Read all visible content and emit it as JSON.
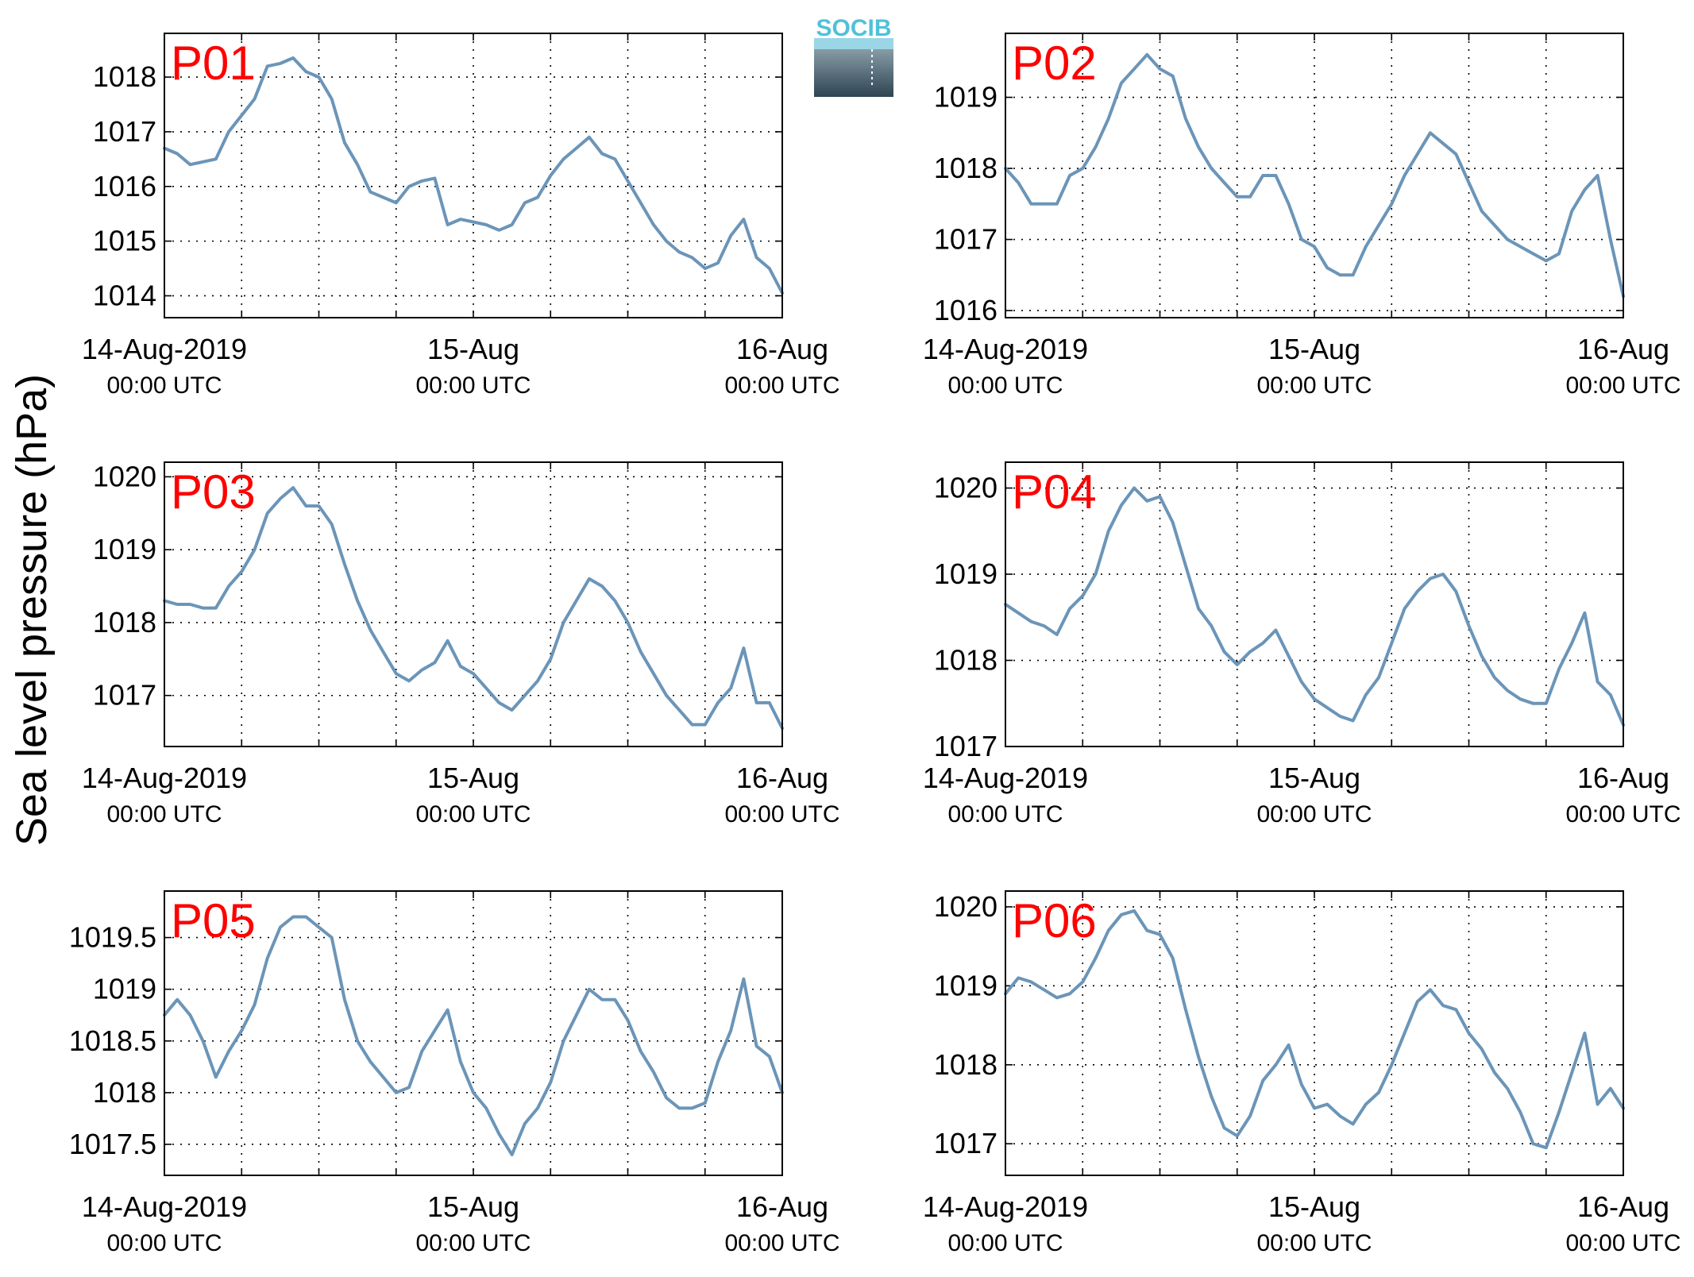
{
  "figure": {
    "ylabel": "Sea level pressure (hPa)",
    "logo_text": "SOCIB",
    "line_color": "#6b95b8",
    "title_color": "#ff0000",
    "logo_top_color": "#4fc1d9",
    "logo_dark_color": "#2e4452"
  },
  "chart_data": [
    {
      "type": "line",
      "title": "P01",
      "xlim": [
        0,
        48
      ],
      "ylim": [
        1013.6,
        1018.8
      ],
      "yticks": [
        1014,
        1015,
        1016,
        1017,
        1018
      ],
      "xtick_labels": [
        {
          "hour": 0,
          "label": "14-Aug-2019",
          "sub": "00:00 UTC"
        },
        {
          "hour": 24,
          "label": "15-Aug",
          "sub": "00:00 UTC"
        },
        {
          "hour": 48,
          "label": "16-Aug",
          "sub": "00:00 UTC"
        }
      ],
      "x": [
        0,
        1,
        2,
        3,
        4,
        5,
        6,
        7,
        8,
        9,
        10,
        11,
        12,
        13,
        14,
        15,
        16,
        17,
        18,
        19,
        20,
        21,
        22,
        23,
        24,
        25,
        26,
        27,
        28,
        29,
        30,
        31,
        32,
        33,
        34,
        35,
        36,
        37,
        38,
        39,
        40,
        41,
        42,
        43,
        44,
        45,
        46,
        47,
        48
      ],
      "y": [
        1016.7,
        1016.6,
        1016.4,
        1016.45,
        1016.5,
        1017.0,
        1017.3,
        1017.6,
        1018.2,
        1018.25,
        1018.35,
        1018.1,
        1018.0,
        1017.6,
        1016.8,
        1016.4,
        1015.9,
        1015.8,
        1015.7,
        1016.0,
        1016.1,
        1016.15,
        1015.3,
        1015.4,
        1015.35,
        1015.3,
        1015.2,
        1015.3,
        1015.7,
        1015.8,
        1016.2,
        1016.5,
        1016.7,
        1016.9,
        1016.6,
        1016.5,
        1016.1,
        1015.7,
        1015.3,
        1015.0,
        1014.8,
        1014.7,
        1014.5,
        1014.6,
        1015.1,
        1015.4,
        1014.7,
        1014.5,
        1014.05
      ]
    },
    {
      "type": "line",
      "title": "P02",
      "xlim": [
        0,
        48
      ],
      "ylim": [
        1015.9,
        1019.9
      ],
      "yticks": [
        1016,
        1017,
        1018,
        1019
      ],
      "xtick_labels": [
        {
          "hour": 0,
          "label": "14-Aug-2019",
          "sub": "00:00 UTC"
        },
        {
          "hour": 24,
          "label": "15-Aug",
          "sub": "00:00 UTC"
        },
        {
          "hour": 48,
          "label": "16-Aug",
          "sub": "00:00 UTC"
        }
      ],
      "x": [
        0,
        1,
        2,
        3,
        4,
        5,
        6,
        7,
        8,
        9,
        10,
        11,
        12,
        13,
        14,
        15,
        16,
        17,
        18,
        19,
        20,
        21,
        22,
        23,
        24,
        25,
        26,
        27,
        28,
        29,
        30,
        31,
        32,
        33,
        34,
        35,
        36,
        37,
        38,
        39,
        40,
        41,
        42,
        43,
        44,
        45,
        46,
        47,
        48
      ],
      "y": [
        1018.0,
        1017.8,
        1017.5,
        1017.5,
        1017.5,
        1017.9,
        1018.0,
        1018.3,
        1018.7,
        1019.2,
        1019.4,
        1019.6,
        1019.4,
        1019.3,
        1018.7,
        1018.3,
        1018.0,
        1017.8,
        1017.6,
        1017.6,
        1017.9,
        1017.9,
        1017.5,
        1017.0,
        1016.9,
        1016.6,
        1016.5,
        1016.5,
        1016.9,
        1017.2,
        1017.5,
        1017.9,
        1018.2,
        1018.5,
        1018.35,
        1018.2,
        1017.8,
        1017.4,
        1017.2,
        1017.0,
        1016.9,
        1016.8,
        1016.7,
        1016.8,
        1017.4,
        1017.7,
        1017.9,
        1017.0,
        1016.2
      ]
    },
    {
      "type": "line",
      "title": "P03",
      "xlim": [
        0,
        48
      ],
      "ylim": [
        1016.3,
        1020.2
      ],
      "yticks": [
        1017,
        1018,
        1019,
        1020
      ],
      "xtick_labels": [
        {
          "hour": 0,
          "label": "14-Aug-2019",
          "sub": "00:00 UTC"
        },
        {
          "hour": 24,
          "label": "15-Aug",
          "sub": "00:00 UTC"
        },
        {
          "hour": 48,
          "label": "16-Aug",
          "sub": "00:00 UTC"
        }
      ],
      "x": [
        0,
        1,
        2,
        3,
        4,
        5,
        6,
        7,
        8,
        9,
        10,
        11,
        12,
        13,
        14,
        15,
        16,
        17,
        18,
        19,
        20,
        21,
        22,
        23,
        24,
        25,
        26,
        27,
        28,
        29,
        30,
        31,
        32,
        33,
        34,
        35,
        36,
        37,
        38,
        39,
        40,
        41,
        42,
        43,
        44,
        45,
        46,
        47,
        48
      ],
      "y": [
        1018.3,
        1018.25,
        1018.25,
        1018.2,
        1018.2,
        1018.5,
        1018.7,
        1019.0,
        1019.5,
        1019.7,
        1019.85,
        1019.6,
        1019.6,
        1019.35,
        1018.8,
        1018.3,
        1017.9,
        1017.6,
        1017.3,
        1017.2,
        1017.35,
        1017.45,
        1017.75,
        1017.4,
        1017.3,
        1017.1,
        1016.9,
        1016.8,
        1017.0,
        1017.2,
        1017.5,
        1018.0,
        1018.3,
        1018.6,
        1018.5,
        1018.3,
        1018.0,
        1017.6,
        1017.3,
        1017.0,
        1016.8,
        1016.6,
        1016.6,
        1016.9,
        1017.1,
        1017.65,
        1016.9,
        1016.9,
        1016.55
      ]
    },
    {
      "type": "line",
      "title": "P04",
      "xlim": [
        0,
        48
      ],
      "ylim": [
        1017,
        1020.3
      ],
      "yticks": [
        1017,
        1018,
        1019,
        1020
      ],
      "xtick_labels": [
        {
          "hour": 0,
          "label": "14-Aug-2019",
          "sub": "00:00 UTC"
        },
        {
          "hour": 24,
          "label": "15-Aug",
          "sub": "00:00 UTC"
        },
        {
          "hour": 48,
          "label": "16-Aug",
          "sub": "00:00 UTC"
        }
      ],
      "x": [
        0,
        1,
        2,
        3,
        4,
        5,
        6,
        7,
        8,
        9,
        10,
        11,
        12,
        13,
        14,
        15,
        16,
        17,
        18,
        19,
        20,
        21,
        22,
        23,
        24,
        25,
        26,
        27,
        28,
        29,
        30,
        31,
        32,
        33,
        34,
        35,
        36,
        37,
        38,
        39,
        40,
        41,
        42,
        43,
        44,
        45,
        46,
        47,
        48
      ],
      "y": [
        1018.65,
        1018.55,
        1018.45,
        1018.4,
        1018.3,
        1018.6,
        1018.75,
        1019.0,
        1019.5,
        1019.8,
        1020.0,
        1019.85,
        1019.9,
        1019.6,
        1019.1,
        1018.6,
        1018.4,
        1018.1,
        1017.95,
        1018.1,
        1018.2,
        1018.35,
        1018.05,
        1017.75,
        1017.55,
        1017.45,
        1017.35,
        1017.3,
        1017.6,
        1017.8,
        1018.2,
        1018.6,
        1018.8,
        1018.95,
        1019.0,
        1018.8,
        1018.4,
        1018.05,
        1017.8,
        1017.65,
        1017.55,
        1017.5,
        1017.5,
        1017.9,
        1018.2,
        1018.55,
        1017.75,
        1017.6,
        1017.25
      ]
    },
    {
      "type": "line",
      "title": "P05",
      "xlim": [
        0,
        48
      ],
      "ylim": [
        1017.2,
        1019.95
      ],
      "yticks": [
        1017.5,
        1018,
        1018.5,
        1019,
        1019.5
      ],
      "xtick_labels": [
        {
          "hour": 0,
          "label": "14-Aug-2019",
          "sub": "00:00 UTC"
        },
        {
          "hour": 24,
          "label": "15-Aug",
          "sub": "00:00 UTC"
        },
        {
          "hour": 48,
          "label": "16-Aug",
          "sub": "00:00 UTC"
        }
      ],
      "x": [
        0,
        1,
        2,
        3,
        4,
        5,
        6,
        7,
        8,
        9,
        10,
        11,
        12,
        13,
        14,
        15,
        16,
        17,
        18,
        19,
        20,
        21,
        22,
        23,
        24,
        25,
        26,
        27,
        28,
        29,
        30,
        31,
        32,
        33,
        34,
        35,
        36,
        37,
        38,
        39,
        40,
        41,
        42,
        43,
        44,
        45,
        46,
        47,
        48
      ],
      "y": [
        1018.75,
        1018.9,
        1018.75,
        1018.5,
        1018.15,
        1018.4,
        1018.6,
        1018.85,
        1019.3,
        1019.6,
        1019.7,
        1019.7,
        1019.6,
        1019.5,
        1018.9,
        1018.5,
        1018.3,
        1018.15,
        1018.0,
        1018.05,
        1018.4,
        1018.6,
        1018.8,
        1018.3,
        1018.0,
        1017.85,
        1017.6,
        1017.4,
        1017.7,
        1017.85,
        1018.1,
        1018.5,
        1018.75,
        1019.0,
        1018.9,
        1018.9,
        1018.7,
        1018.4,
        1018.2,
        1017.95,
        1017.85,
        1017.85,
        1017.9,
        1018.3,
        1018.6,
        1019.1,
        1018.45,
        1018.35,
        1018.0
      ]
    },
    {
      "type": "line",
      "title": "P06",
      "xlim": [
        0,
        48
      ],
      "ylim": [
        1016.6,
        1020.2
      ],
      "yticks": [
        1017,
        1018,
        1019,
        1020
      ],
      "xtick_labels": [
        {
          "hour": 0,
          "label": "14-Aug-2019",
          "sub": "00:00 UTC"
        },
        {
          "hour": 24,
          "label": "15-Aug",
          "sub": "00:00 UTC"
        },
        {
          "hour": 48,
          "label": "16-Aug",
          "sub": "00:00 UTC"
        }
      ],
      "x": [
        0,
        1,
        2,
        3,
        4,
        5,
        6,
        7,
        8,
        9,
        10,
        11,
        12,
        13,
        14,
        15,
        16,
        17,
        18,
        19,
        20,
        21,
        22,
        23,
        24,
        25,
        26,
        27,
        28,
        29,
        30,
        31,
        32,
        33,
        34,
        35,
        36,
        37,
        38,
        39,
        40,
        41,
        42,
        43,
        44,
        45,
        46,
        47,
        48
      ],
      "y": [
        1018.9,
        1019.1,
        1019.05,
        1018.95,
        1018.85,
        1018.9,
        1019.05,
        1019.35,
        1019.7,
        1019.9,
        1019.95,
        1019.7,
        1019.65,
        1019.35,
        1018.7,
        1018.1,
        1017.6,
        1017.2,
        1017.1,
        1017.35,
        1017.8,
        1018.0,
        1018.25,
        1017.75,
        1017.45,
        1017.5,
        1017.35,
        1017.25,
        1017.5,
        1017.65,
        1018.0,
        1018.4,
        1018.8,
        1018.95,
        1018.75,
        1018.7,
        1018.4,
        1018.2,
        1017.9,
        1017.7,
        1017.4,
        1017.0,
        1016.95,
        1017.4,
        1017.9,
        1018.4,
        1017.5,
        1017.7,
        1017.45
      ]
    }
  ]
}
